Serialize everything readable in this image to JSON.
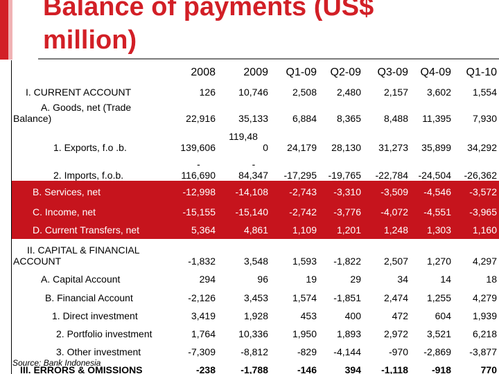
{
  "title_line1": "Balance of payments (US$",
  "title_line2": "million)",
  "columns": [
    "2008",
    "2009",
    "Q1-09",
    "Q2-09",
    "Q3-09",
    "Q4-09",
    "Q1-10"
  ],
  "rows": [
    {
      "label": "I.  CURRENT ACCOUNT",
      "values": [
        "126",
        "10,746",
        "2,508",
        "2,480",
        "2,157",
        "3,602",
        "1,554"
      ]
    },
    {
      "label": "A. Goods, net (Trade Balance)",
      "values": [
        "22,916",
        "35,133",
        "6,884",
        "8,365",
        "8,488",
        "11,395",
        "7,930"
      ]
    },
    {
      "label": "1. Exports, f.o .b.",
      "values": [
        "139,606",
        "119,480",
        "24,179",
        "28,130",
        "31,273",
        "35,899",
        "34,292"
      ]
    },
    {
      "label": "2. Imports, f.o.b.",
      "values": [
        "-116,690",
        "-84,347",
        "-17,295",
        "-19,765",
        "-22,784",
        "-24,504",
        "-26,362"
      ]
    },
    {
      "label": "B. Services, net",
      "values": [
        "-12,998",
        "-14,108",
        "-2,743",
        "-3,310",
        "-3,509",
        "-4,546",
        "-3,572"
      ]
    },
    {
      "label": "C. Income, net",
      "values": [
        "-15,155",
        "-15,140",
        "-2,742",
        "-3,776",
        "-4,072",
        "-4,551",
        "-3,965"
      ]
    },
    {
      "label": "D. Current Transfers, net",
      "values": [
        "5,364",
        "4,861",
        "1,109",
        "1,201",
        "1,248",
        "1,303",
        "1,160"
      ]
    },
    {
      "label": "II.  CAPITAL & FINANCIAL ACCOUNT",
      "values": [
        "-1,832",
        "3,548",
        "1,593",
        "-1,822",
        "2,507",
        "1,270",
        "4,297"
      ]
    },
    {
      "label": "A. Capital Account",
      "values": [
        "294",
        "96",
        "19",
        "29",
        "34",
        "14",
        "18"
      ]
    },
    {
      "label": "B. Financial Account",
      "values": [
        "-2,126",
        "3,453",
        "1,574",
        "-1,851",
        "2,474",
        "1,255",
        "4,279"
      ]
    },
    {
      "label": "1. Direct investment",
      "values": [
        "3,419",
        "1,928",
        "453",
        "400",
        "472",
        "604",
        "1,939"
      ]
    },
    {
      "label": "2. Portfolio investment",
      "values": [
        "1,764",
        "10,336",
        "1,950",
        "1,893",
        "2,972",
        "3,521",
        "6,218"
      ]
    },
    {
      "label": "3. Other investment",
      "values": [
        "-7,309",
        "-8,812",
        "-829",
        "-4,144",
        "-970",
        "-2,869",
        "-3,877"
      ]
    },
    {
      "label": "III. ERRORS & OMISSIONS",
      "values": [
        "-238",
        "-1,788",
        "-146",
        "394",
        "-1,118",
        "-918",
        "770"
      ]
    }
  ],
  "split_cells": {
    "exports_2009_a": "119,48",
    "exports_2009_b": "0",
    "imports_2008_a": "-",
    "imports_2008_b": "116,690",
    "imports_2009_a": "-",
    "imports_2009_b": "84,347"
  },
  "source": "Source: Bank Indonesia",
  "colors": {
    "accent": "#d21f26",
    "band": "#c6141d"
  }
}
